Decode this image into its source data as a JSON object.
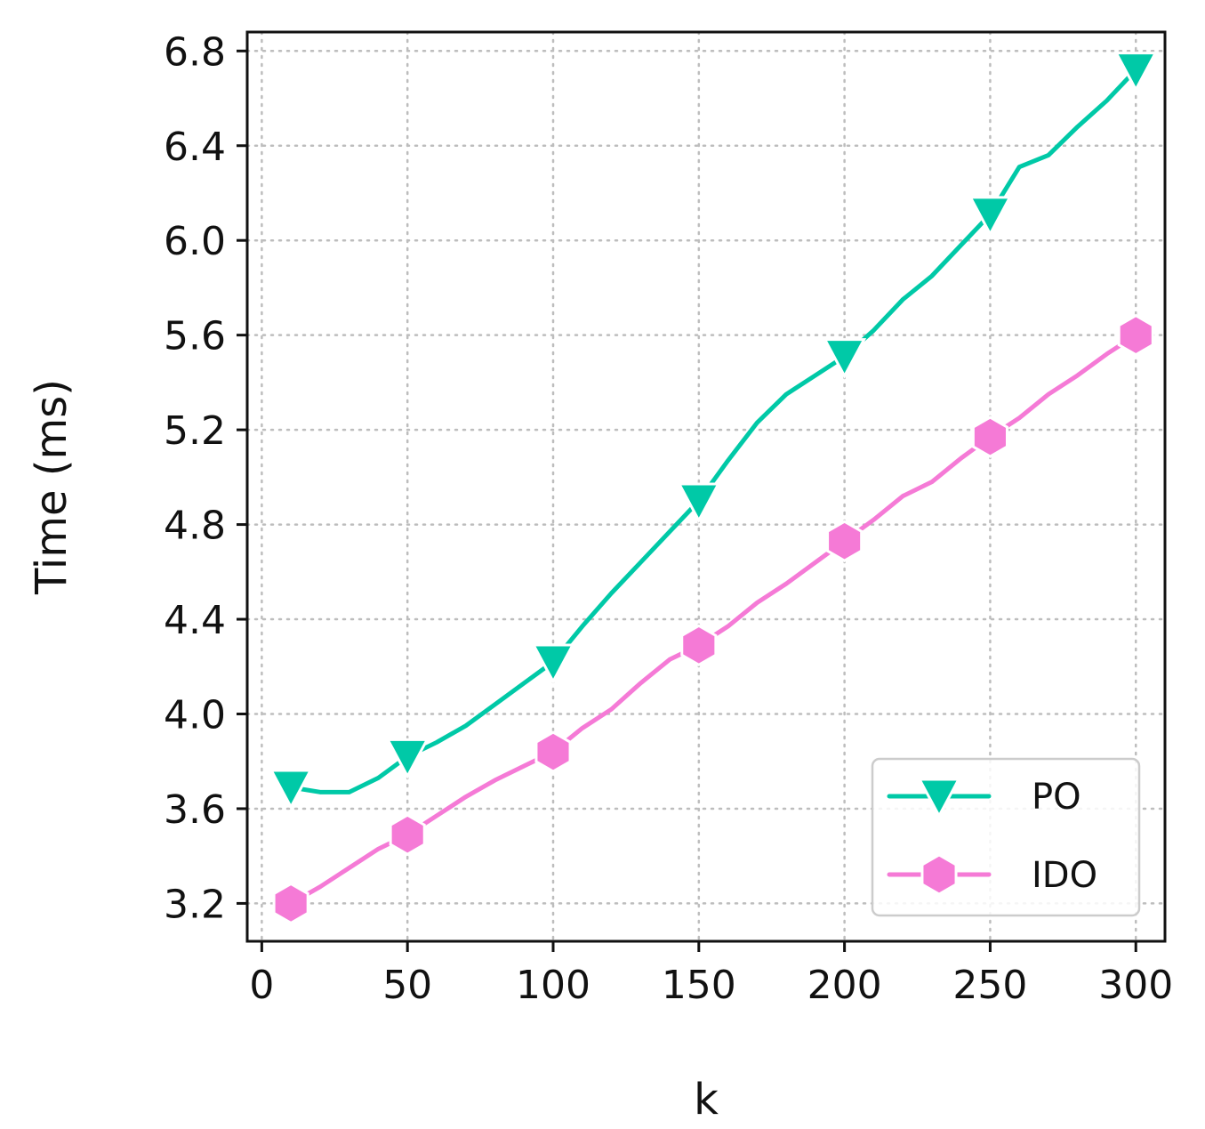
{
  "chart_data": {
    "type": "line",
    "title": "",
    "xlabel": "k",
    "ylabel": "Time (ms)",
    "xlim": [
      -5,
      310
    ],
    "ylim": [
      3.04,
      6.88
    ],
    "xticks": [
      0,
      50,
      100,
      150,
      200,
      250,
      300
    ],
    "yticks": [
      3.2,
      3.6,
      4.0,
      4.4,
      4.8,
      5.2,
      5.6,
      6.0,
      6.4,
      6.8
    ],
    "xtick_labels": [
      "0",
      "50",
      "100",
      "150",
      "200",
      "250",
      "300"
    ],
    "ytick_labels": [
      "3.2",
      "3.6",
      "4.0",
      "4.4",
      "4.8",
      "5.2",
      "5.6",
      "6.0",
      "6.4",
      "6.8"
    ],
    "grid": true,
    "legend_position": "bottom-right",
    "series": [
      {
        "name": "PO",
        "color": "#00c9a7",
        "marker": "triangle-down",
        "x": [
          10,
          20,
          30,
          40,
          50,
          60,
          70,
          80,
          90,
          100,
          110,
          120,
          130,
          140,
          150,
          160,
          170,
          180,
          190,
          200,
          210,
          220,
          230,
          240,
          250,
          260,
          270,
          280,
          290,
          300
        ],
        "y": [
          3.69,
          3.67,
          3.67,
          3.73,
          3.82,
          3.88,
          3.95,
          4.04,
          4.13,
          4.22,
          4.37,
          4.51,
          4.64,
          4.77,
          4.9,
          5.07,
          5.23,
          5.35,
          5.43,
          5.51,
          5.62,
          5.75,
          5.85,
          5.98,
          6.11,
          6.31,
          6.36,
          6.48,
          6.59,
          6.72
        ],
        "marker_x": [
          10,
          50,
          100,
          150,
          200,
          250,
          300
        ]
      },
      {
        "name": "IDO",
        "color": "#f57ad6",
        "marker": "hexagon",
        "x": [
          10,
          20,
          30,
          40,
          50,
          60,
          70,
          80,
          90,
          100,
          110,
          120,
          130,
          140,
          150,
          160,
          170,
          180,
          190,
          200,
          210,
          220,
          230,
          240,
          250,
          260,
          270,
          280,
          290,
          300
        ],
        "y": [
          3.2,
          3.27,
          3.35,
          3.43,
          3.49,
          3.57,
          3.65,
          3.72,
          3.78,
          3.84,
          3.94,
          4.02,
          4.13,
          4.23,
          4.29,
          4.37,
          4.47,
          4.55,
          4.64,
          4.73,
          4.82,
          4.92,
          4.98,
          5.08,
          5.17,
          5.25,
          5.35,
          5.43,
          5.52,
          5.6
        ],
        "marker_x": [
          10,
          50,
          100,
          150,
          200,
          250,
          300
        ]
      }
    ]
  }
}
